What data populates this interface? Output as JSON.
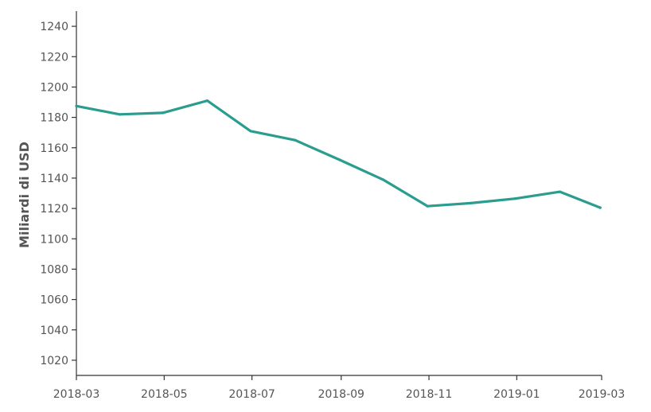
{
  "chart_data": {
    "type": "line",
    "title": "",
    "xlabel": "",
    "ylabel": "Miliardi di USD",
    "ylim": [
      1010,
      1250
    ],
    "yticks": [
      1020,
      1040,
      1060,
      1080,
      1100,
      1120,
      1140,
      1160,
      1180,
      1200,
      1220,
      1240
    ],
    "xlim": [
      "2018-03-01",
      "2019-03-01"
    ],
    "xticks": [
      "2018-03",
      "2018-05",
      "2018-07",
      "2018-09",
      "2018-11",
      "2019-01",
      "2019-03"
    ],
    "grid": false,
    "legend": false,
    "colors": {
      "series": "#2a9d8f",
      "axis": "#333333",
      "text": "#555555"
    },
    "series": [
      {
        "x": [
          "2018-03-01",
          "2018-03-31",
          "2018-04-30",
          "2018-05-31",
          "2018-06-30",
          "2018-07-31",
          "2018-08-31",
          "2018-09-30",
          "2018-10-31",
          "2018-11-30",
          "2018-12-31",
          "2019-01-31",
          "2019-02-28"
        ],
        "y": [
          1187.5,
          1182,
          1183,
          1191,
          1171,
          1165,
          1152,
          1139,
          1121.5,
          1123.5,
          1126.5,
          1131,
          1120.5
        ]
      }
    ]
  }
}
